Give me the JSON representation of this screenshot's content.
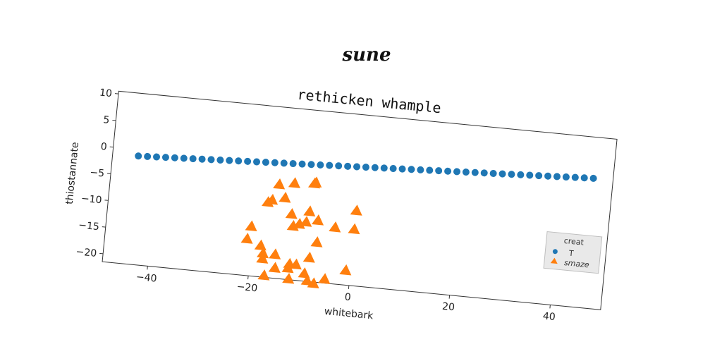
{
  "chart_data": {
    "type": "scatter",
    "suptitle": "sune",
    "title": "rethicken whample",
    "xlabel": "whitebark",
    "ylabel": "thiostannate",
    "xlim": [
      -49,
      50
    ],
    "ylim": [
      -21.5,
      10.5
    ],
    "xticks": [
      -40,
      -20,
      0,
      20,
      40
    ],
    "yticks": [
      10,
      5,
      0,
      -5,
      -10,
      -15,
      -20
    ],
    "grid": false,
    "legend": {
      "title": "creat",
      "placement": "center-right"
    },
    "series": [
      {
        "name": "T",
        "marker": "circle",
        "color": "#1f77b4",
        "x": [
          -43.9,
          -42.1,
          -40.3,
          -38.5,
          -36.7,
          -34.9,
          -33.1,
          -31.3,
          -29.5,
          -27.7,
          -25.9,
          -24.1,
          -22.3,
          -20.5,
          -18.7,
          -16.9,
          -15.1,
          -13.3,
          -11.5,
          -9.7,
          -7.9,
          -6.1,
          -4.3,
          -2.5,
          -0.7,
          1.1,
          2.9,
          4.7,
          6.5,
          8.3,
          10.1,
          11.9,
          13.7,
          15.5,
          17.3,
          19.1,
          20.9,
          22.7,
          24.5,
          26.3,
          28.1,
          29.9,
          31.7,
          33.5,
          35.3,
          37.1,
          38.9,
          40.7,
          42.5,
          44.3,
          46.1
        ],
        "y": [
          -1.2,
          -1.12,
          -1.04,
          -0.96,
          -0.88,
          -0.8,
          -0.72,
          -0.64,
          -0.56,
          -0.48,
          -0.4,
          -0.32,
          -0.24,
          -0.16,
          -0.08,
          0.0,
          0.08,
          0.16,
          0.24,
          0.32,
          0.4,
          0.48,
          0.56,
          0.64,
          0.72,
          0.8,
          0.88,
          0.96,
          1.04,
          1.12,
          1.2,
          1.28,
          1.36,
          1.44,
          1.52,
          1.6,
          1.68,
          1.76,
          1.84,
          1.92,
          2.0,
          2.08,
          2.16,
          2.24,
          2.32,
          2.4,
          2.48,
          2.56,
          2.64,
          2.72,
          2.8
        ]
      },
      {
        "name": "smaze",
        "marker": "triangle",
        "color": "#ff7f0e",
        "x": [
          -15.6,
          -12.6,
          -8.7,
          -8.4,
          -16.7,
          -17.5,
          -14.2,
          -12.6,
          -9.1,
          -9.6,
          -7.3,
          -10.9,
          -12.1,
          -3.8,
          0.1,
          0.0,
          -20.3,
          -18.1,
          -20.9,
          -7.1,
          -17.5,
          -15.1,
          -8.3,
          -17.5,
          -10.8,
          -12.1,
          -14.9,
          -12.3,
          -9.0,
          -4.9,
          -16.9,
          -12.0,
          -8.3,
          -7.0,
          -0.9
        ],
        "y": [
          -4.0,
          -3.5,
          -3.2,
          -3.0,
          -7.0,
          -7.5,
          -6.4,
          -9.3,
          -8.5,
          -10.5,
          -10.0,
          -11.0,
          -11.5,
          -11.0,
          -7.5,
          -11.0,
          -12.3,
          -15.7,
          -14.7,
          -14.1,
          -17.1,
          -17.1,
          -17.1,
          -18.1,
          -18.6,
          -18.6,
          -19.6,
          -19.4,
          -20.1,
          -20.8,
          -21.2,
          -21.4,
          -21.4,
          -21.8,
          -18.8
        ]
      }
    ]
  }
}
